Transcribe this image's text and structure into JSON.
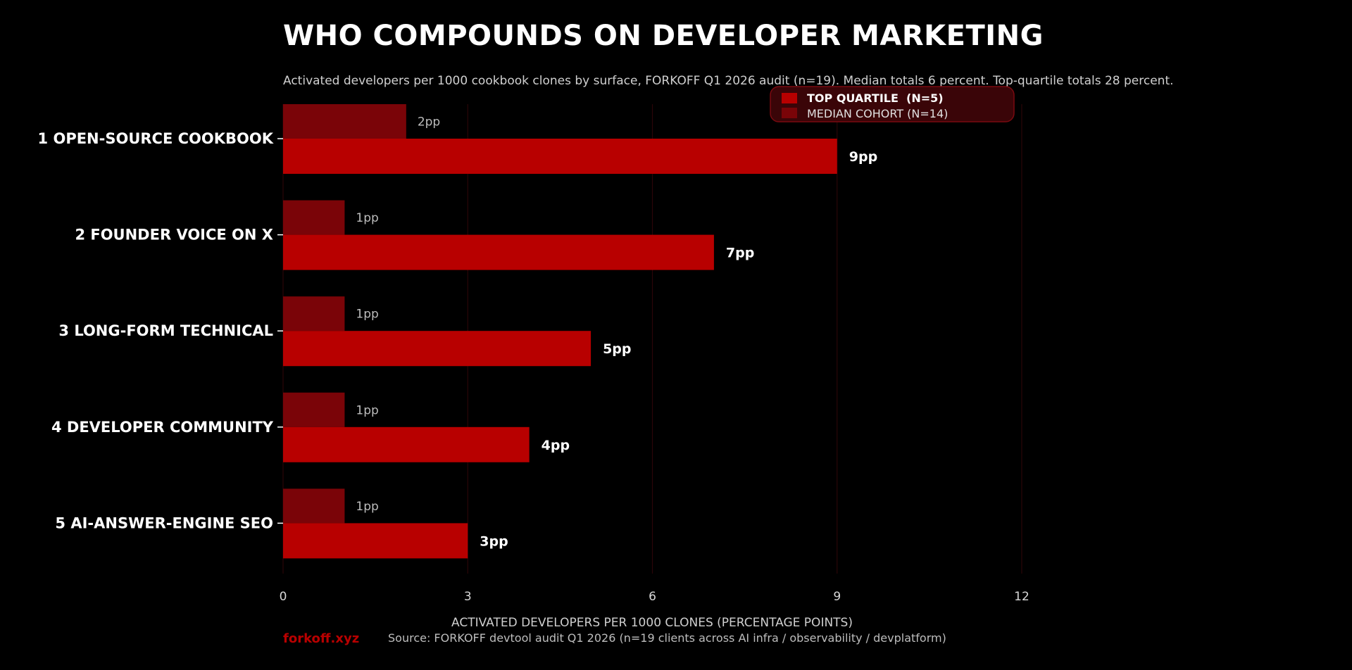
{
  "chart_data": {
    "type": "bar",
    "orientation": "horizontal",
    "title": "WHO COMPOUNDS ON DEVELOPER MARKETING",
    "subtitle": "Activated developers per 1000 cookbook clones by surface, FORKOFF Q1 2026 audit (n=19). Median totals 6 percent. Top-quartile totals 28 percent.",
    "categories": [
      "1 OPEN-SOURCE COOKBOOK",
      "2 FOUNDER VOICE ON X",
      "3 LONG-FORM TECHNICAL",
      "4 DEVELOPER COMMUNITY",
      "5 AI-ANSWER-ENGINE SEO"
    ],
    "series": [
      {
        "name": "TOP QUARTILE  (N=5)",
        "values": [
          9,
          7,
          5,
          4,
          3
        ],
        "labels": [
          "9pp",
          "7pp",
          "5pp",
          "4pp",
          "3pp"
        ],
        "color": "#b80000"
      },
      {
        "name": "MEDIAN COHORT (N=14)",
        "values": [
          2,
          1,
          1,
          1,
          1
        ],
        "labels": [
          "2pp",
          "1pp",
          "1pp",
          "1pp",
          "1pp"
        ],
        "color": "#7a0408"
      }
    ],
    "xlabel": "ACTIVATED DEVELOPERS PER 1000 CLONES (PERCENTAGE POINTS)",
    "ylabel": "",
    "xlim": [
      0,
      12
    ],
    "xticks": [
      0,
      3,
      6,
      9,
      12
    ],
    "grid": "vertical",
    "legend_position": "top-right"
  },
  "footer": {
    "brand": "forkoff.xyz",
    "source": "Source: FORKOFF devtool audit Q1 2026 (n=19 clients across AI infra / observability / devplatform)"
  },
  "colors": {
    "background": "#000000",
    "top_quartile": "#b80000",
    "median_cohort": "#7a0408",
    "gridline": "#2a0508",
    "legend_bg": "#3a0508",
    "legend_border": "#7a0a10"
  }
}
